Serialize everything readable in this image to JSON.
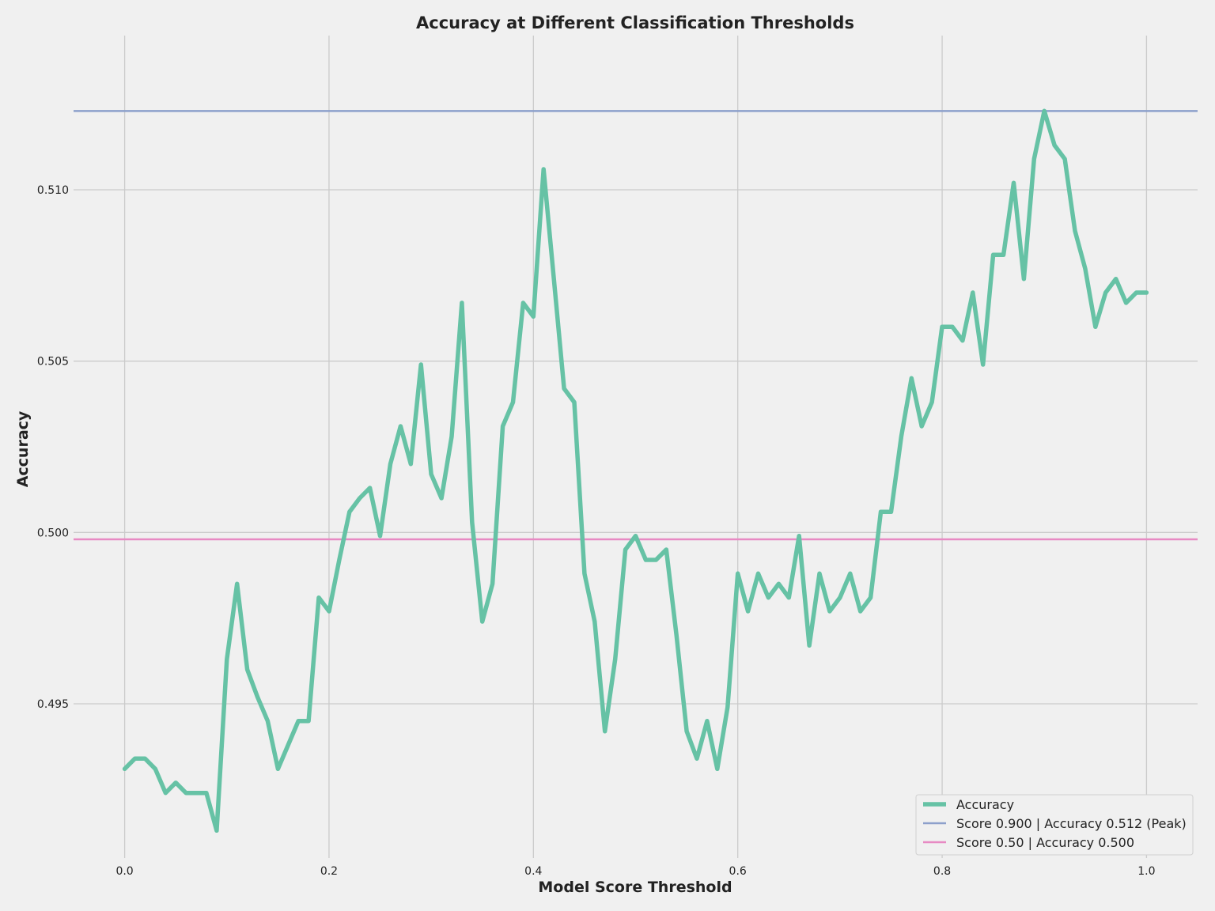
{
  "chart_data": {
    "type": "line",
    "title": "Accuracy at Different Classification Thresholds",
    "xlabel": "Model Score Threshold",
    "ylabel": "Accuracy",
    "xlim": [
      -0.05,
      1.05
    ],
    "ylim": [
      0.4905,
      0.5145
    ],
    "xticks": [
      0.0,
      0.2,
      0.4,
      0.6,
      0.8,
      1.0
    ],
    "xtick_labels": [
      "0.0",
      "0.2",
      "0.4",
      "0.6",
      "0.8",
      "1.0"
    ],
    "yticks": [
      0.495,
      0.5,
      0.505,
      0.51
    ],
    "ytick_labels": [
      "0.495",
      "0.500",
      "0.505",
      "0.510"
    ],
    "grid": true,
    "legend_position": "bottom-right",
    "series": [
      {
        "name": "Accuracy",
        "color": "#66c2a5",
        "x": [
          0.0,
          0.01,
          0.02,
          0.03,
          0.04,
          0.05,
          0.06,
          0.07,
          0.08,
          0.09,
          0.1,
          0.11,
          0.12,
          0.13,
          0.14,
          0.15,
          0.16,
          0.17,
          0.18,
          0.19,
          0.2,
          0.21,
          0.22,
          0.23,
          0.24,
          0.25,
          0.26,
          0.27,
          0.28,
          0.29,
          0.3,
          0.31,
          0.32,
          0.33,
          0.34,
          0.35,
          0.36,
          0.37,
          0.38,
          0.39,
          0.4,
          0.41,
          0.42,
          0.43,
          0.44,
          0.45,
          0.46,
          0.47,
          0.48,
          0.49,
          0.5,
          0.51,
          0.52,
          0.53,
          0.54,
          0.55,
          0.56,
          0.57,
          0.58,
          0.59,
          0.6,
          0.61,
          0.62,
          0.63,
          0.64,
          0.65,
          0.66,
          0.67,
          0.68,
          0.69,
          0.7,
          0.71,
          0.72,
          0.73,
          0.74,
          0.75,
          0.76,
          0.77,
          0.78,
          0.79,
          0.8,
          0.81,
          0.82,
          0.83,
          0.84,
          0.85,
          0.86,
          0.87,
          0.88,
          0.89,
          0.9,
          0.91,
          0.92,
          0.93,
          0.94,
          0.95,
          0.96,
          0.97,
          0.98,
          0.99,
          1.0
        ],
        "y": [
          0.4931,
          0.4934,
          0.4934,
          0.4931,
          0.4924,
          0.4927,
          0.4924,
          0.4924,
          0.4924,
          0.4913,
          0.4963,
          0.4985,
          0.496,
          0.4952,
          0.4945,
          0.4931,
          0.4938,
          0.4945,
          0.4945,
          0.4981,
          0.4977,
          0.4992,
          0.5006,
          0.501,
          0.5013,
          0.4999,
          0.502,
          0.5031,
          0.502,
          0.5049,
          0.5017,
          0.501,
          0.5028,
          0.5067,
          0.5003,
          0.4974,
          0.4985,
          0.5031,
          0.5038,
          0.5067,
          0.5063,
          0.5106,
          0.5074,
          0.5042,
          0.5038,
          0.4988,
          0.4974,
          0.4942,
          0.4963,
          0.4995,
          0.4999,
          0.4992,
          0.4992,
          0.4995,
          0.497,
          0.4942,
          0.4934,
          0.4945,
          0.4931,
          0.4949,
          0.4988,
          0.4977,
          0.4988,
          0.4981,
          0.4985,
          0.4981,
          0.4999,
          0.4967,
          0.4988,
          0.4977,
          0.4981,
          0.4988,
          0.4977,
          0.4981,
          0.5006,
          0.5006,
          0.5028,
          0.5045,
          0.5031,
          0.5038,
          0.506,
          0.506,
          0.5056,
          0.507,
          0.5049,
          0.5081,
          0.5081,
          0.5102,
          0.5074,
          0.5109,
          0.5123,
          0.5113,
          0.5109,
          0.5088,
          0.5077,
          0.506,
          0.507,
          0.5074,
          0.5067,
          0.507,
          0.507
        ]
      },
      {
        "name": "Score 0.900 | Accuracy 0.512 (Peak)",
        "color": "#8da0cb",
        "hline": 0.5123
      },
      {
        "name": "Score 0.50 | Accuracy 0.500",
        "color": "#e78ac3",
        "hline": 0.4998
      }
    ]
  }
}
